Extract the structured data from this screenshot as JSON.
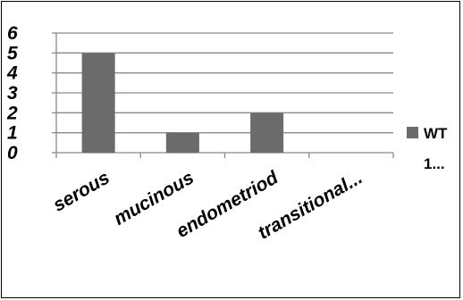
{
  "chart_data": {
    "type": "bar",
    "categories": [
      "serous",
      "mucinous",
      "endometriod",
      "transitional..."
    ],
    "series": [
      {
        "name": "WT 1...",
        "values": [
          5,
          1,
          2,
          0
        ],
        "color": "#6b6b6b"
      }
    ],
    "title": "",
    "xlabel": "",
    "ylabel": "",
    "ylim": [
      0,
      6
    ],
    "yticks": [
      "0",
      "1",
      "2",
      "3",
      "4",
      "5",
      "6"
    ],
    "grid": true,
    "legend_position": "right"
  },
  "legend": {
    "line1": "WT",
    "line2": "1..."
  }
}
